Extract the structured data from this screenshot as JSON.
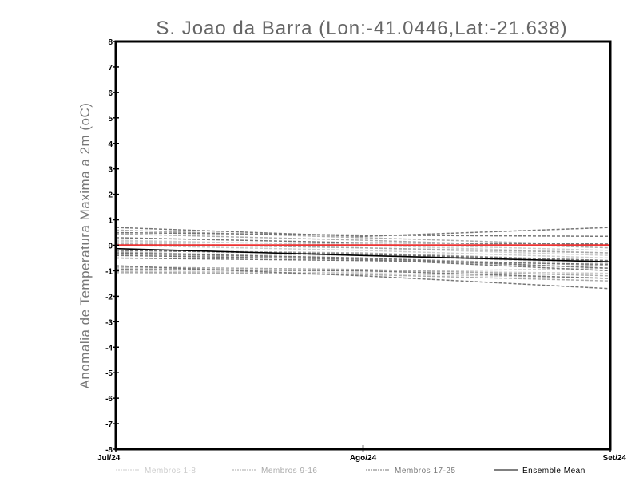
{
  "chart_data": {
    "type": "line",
    "title": "S. Joao da Barra (Lon:-41.0446,Lat:-21.638)",
    "xlabel": "",
    "ylabel": "Anomalia de Temperatura Maxima a 2m (oC)",
    "categories": [
      "Jul/24",
      "Ago/24",
      "Set/24"
    ],
    "ylim": [
      -8,
      8
    ],
    "yticks": [
      -8,
      -7,
      -6,
      -5,
      -4,
      -3,
      -2,
      -1,
      0,
      1,
      2,
      3,
      4,
      5,
      6,
      7,
      8
    ],
    "grid": false,
    "legend_position": "bottom",
    "reference_line": {
      "value": 0,
      "color": "#ee3333"
    },
    "groups": [
      {
        "name": "Membros 1-8",
        "color": "#cccccc",
        "style": "dashed",
        "members": [
          [
            0.2,
            0.0,
            -0.3
          ],
          [
            0.1,
            -0.1,
            -0.4
          ],
          [
            -0.9,
            -1.0,
            -1.1
          ],
          [
            -1.1,
            -1.05,
            -0.9
          ],
          [
            0.0,
            -0.2,
            -0.5
          ],
          [
            -0.3,
            -0.4,
            -0.7
          ],
          [
            0.15,
            0.05,
            -0.2
          ],
          [
            -1.0,
            -1.1,
            -1.3
          ]
        ]
      },
      {
        "name": "Membros 9-16",
        "color": "#aaaaaa",
        "style": "dashed",
        "members": [
          [
            0.6,
            0.3,
            0.0
          ],
          [
            -0.2,
            -0.3,
            -0.6
          ],
          [
            -0.85,
            -0.95,
            -1.2
          ],
          [
            0.05,
            -0.1,
            -0.3
          ],
          [
            -0.35,
            -0.5,
            -0.8
          ],
          [
            -1.05,
            -1.15,
            -1.4
          ],
          [
            0.45,
            0.2,
            -0.1
          ],
          [
            -0.25,
            -0.55,
            -0.9
          ]
        ]
      },
      {
        "name": "Membros 17-25",
        "color": "#777777",
        "style": "dashed",
        "members": [
          [
            0.7,
            0.35,
            0.7
          ],
          [
            0.5,
            0.4,
            0.35
          ],
          [
            -0.3,
            -0.5,
            -0.9
          ],
          [
            -0.4,
            -0.55,
            -1.0
          ],
          [
            -0.95,
            -1.0,
            -1.3
          ],
          [
            -0.8,
            -1.2,
            -1.7
          ],
          [
            0.3,
            0.1,
            0.05
          ],
          [
            -0.5,
            -0.6,
            -0.75
          ],
          [
            -0.2,
            -0.35,
            -0.6
          ]
        ]
      }
    ],
    "series": [
      {
        "name": "Ensemble Mean",
        "color": "#000000",
        "style": "solid",
        "values": [
          -0.13,
          -0.4,
          -0.65
        ]
      }
    ]
  }
}
